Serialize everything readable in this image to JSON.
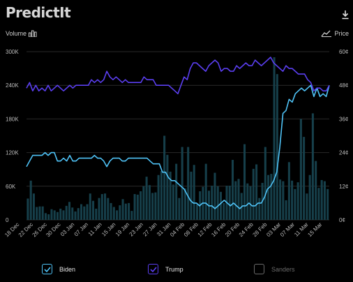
{
  "header": {
    "logo_text": "PredictIt"
  },
  "toggles": {
    "volume_label": "Volume",
    "price_label": "Price"
  },
  "legend": [
    {
      "label": "Biden",
      "color": "#4fc3f7",
      "checked": true
    },
    {
      "label": "Trump",
      "color": "#5b3ff2",
      "checked": true
    },
    {
      "label": "Sanders",
      "color": "#6b6b6b",
      "checked": false
    }
  ],
  "chart_data": {
    "type": "line",
    "left_axis": {
      "label": "Volume",
      "ticks": [
        "0",
        "60K",
        "120K",
        "180K",
        "240K",
        "300K"
      ],
      "range": [
        0,
        300000
      ]
    },
    "right_axis": {
      "label": "Price",
      "ticks": [
        "0¢",
        "12¢",
        "24¢",
        "36¢",
        "48¢",
        "60¢"
      ],
      "range": [
        0,
        60
      ]
    },
    "x_tick_labels": [
      "18 Dec",
      "22 Dec",
      "26 Dec",
      "30 Dec",
      "03 Jan",
      "07 Jan",
      "11 Jan",
      "15 Jan",
      "19 Jan",
      "23 Jan",
      "27 Jan",
      "31 Jan",
      "04 Feb",
      "08 Feb",
      "12 Feb",
      "16 Feb",
      "20 Feb",
      "24 Feb",
      "28 Feb",
      "03 Mar",
      "07 Mar",
      "11 Mar",
      "15 Mar"
    ],
    "grid": true,
    "volume_bars": [
      38000,
      70000,
      47000,
      23000,
      24000,
      24000,
      12000,
      10000,
      19000,
      17000,
      14000,
      20000,
      17000,
      25000,
      32000,
      22000,
      15000,
      21000,
      28000,
      24000,
      28000,
      47000,
      34000,
      20000,
      39000,
      46000,
      47000,
      39000,
      30000,
      23000,
      17000,
      26000,
      37000,
      29000,
      30000,
      16000,
      46000,
      45000,
      51000,
      60000,
      77000,
      62000,
      48000,
      49000,
      80000,
      87000,
      150000,
      116000,
      86000,
      63000,
      100000,
      39000,
      130000,
      56000,
      130000,
      86000,
      98000,
      28000,
      51000,
      59000,
      100000,
      52000,
      61000,
      84000,
      60000,
      50000,
      30000,
      61000,
      61000,
      107000,
      69000,
      73000,
      48000,
      135000,
      65000,
      60000,
      91000,
      99000,
      39000,
      66000,
      130000,
      80000,
      82000,
      290000,
      260000,
      72000,
      69000,
      35000,
      103000,
      70000,
      55000,
      67000,
      180000,
      148000,
      47000,
      80000,
      190000,
      105000,
      57000,
      71000,
      69000,
      55000
    ],
    "series": [
      {
        "name": "Biden",
        "color": "#4fc3f7",
        "values": [
          19,
          21,
          23,
          23,
          23,
          23,
          24,
          23,
          24,
          24,
          21,
          21,
          22,
          21,
          23,
          21,
          21,
          22,
          22,
          22,
          22,
          22,
          23,
          22,
          22,
          21,
          19,
          21,
          22,
          22,
          22,
          21,
          21,
          22,
          22,
          22,
          22,
          22,
          22,
          22,
          21,
          20,
          20,
          20,
          17,
          17,
          15,
          14,
          14,
          13,
          12,
          11,
          9,
          7,
          6,
          6,
          5,
          6,
          6,
          5,
          5,
          4,
          5,
          6,
          7,
          6,
          5,
          6,
          5,
          4,
          5,
          5,
          6,
          5,
          5,
          6,
          6,
          8,
          11,
          12,
          14,
          17,
          26,
          38,
          39,
          43,
          42,
          45,
          46,
          47,
          46,
          47,
          48,
          44,
          47,
          44,
          45,
          44,
          48
        ]
      },
      {
        "name": "Trump",
        "color": "#5b3ff2",
        "values": [
          47,
          49,
          46,
          48,
          46,
          47,
          46,
          48,
          46,
          47,
          48,
          47,
          46,
          47,
          48,
          47,
          48,
          48,
          48,
          48,
          48,
          50,
          49,
          50,
          49,
          50,
          53,
          51,
          50,
          51,
          50,
          49,
          50,
          49,
          49,
          49,
          49,
          49,
          51,
          50,
          50,
          50,
          48,
          48,
          48,
          48,
          48,
          47,
          46,
          45,
          48,
          51,
          50,
          54,
          56,
          56,
          55,
          54,
          53,
          55,
          56,
          57,
          56,
          53,
          54,
          54,
          53,
          53,
          55,
          54,
          55,
          56,
          55,
          55,
          57,
          56,
          55,
          56,
          57,
          58,
          56,
          55,
          54,
          53,
          55,
          54,
          54,
          53,
          52,
          52,
          52,
          50,
          49,
          46,
          47,
          47,
          46,
          46,
          48
        ]
      }
    ]
  }
}
